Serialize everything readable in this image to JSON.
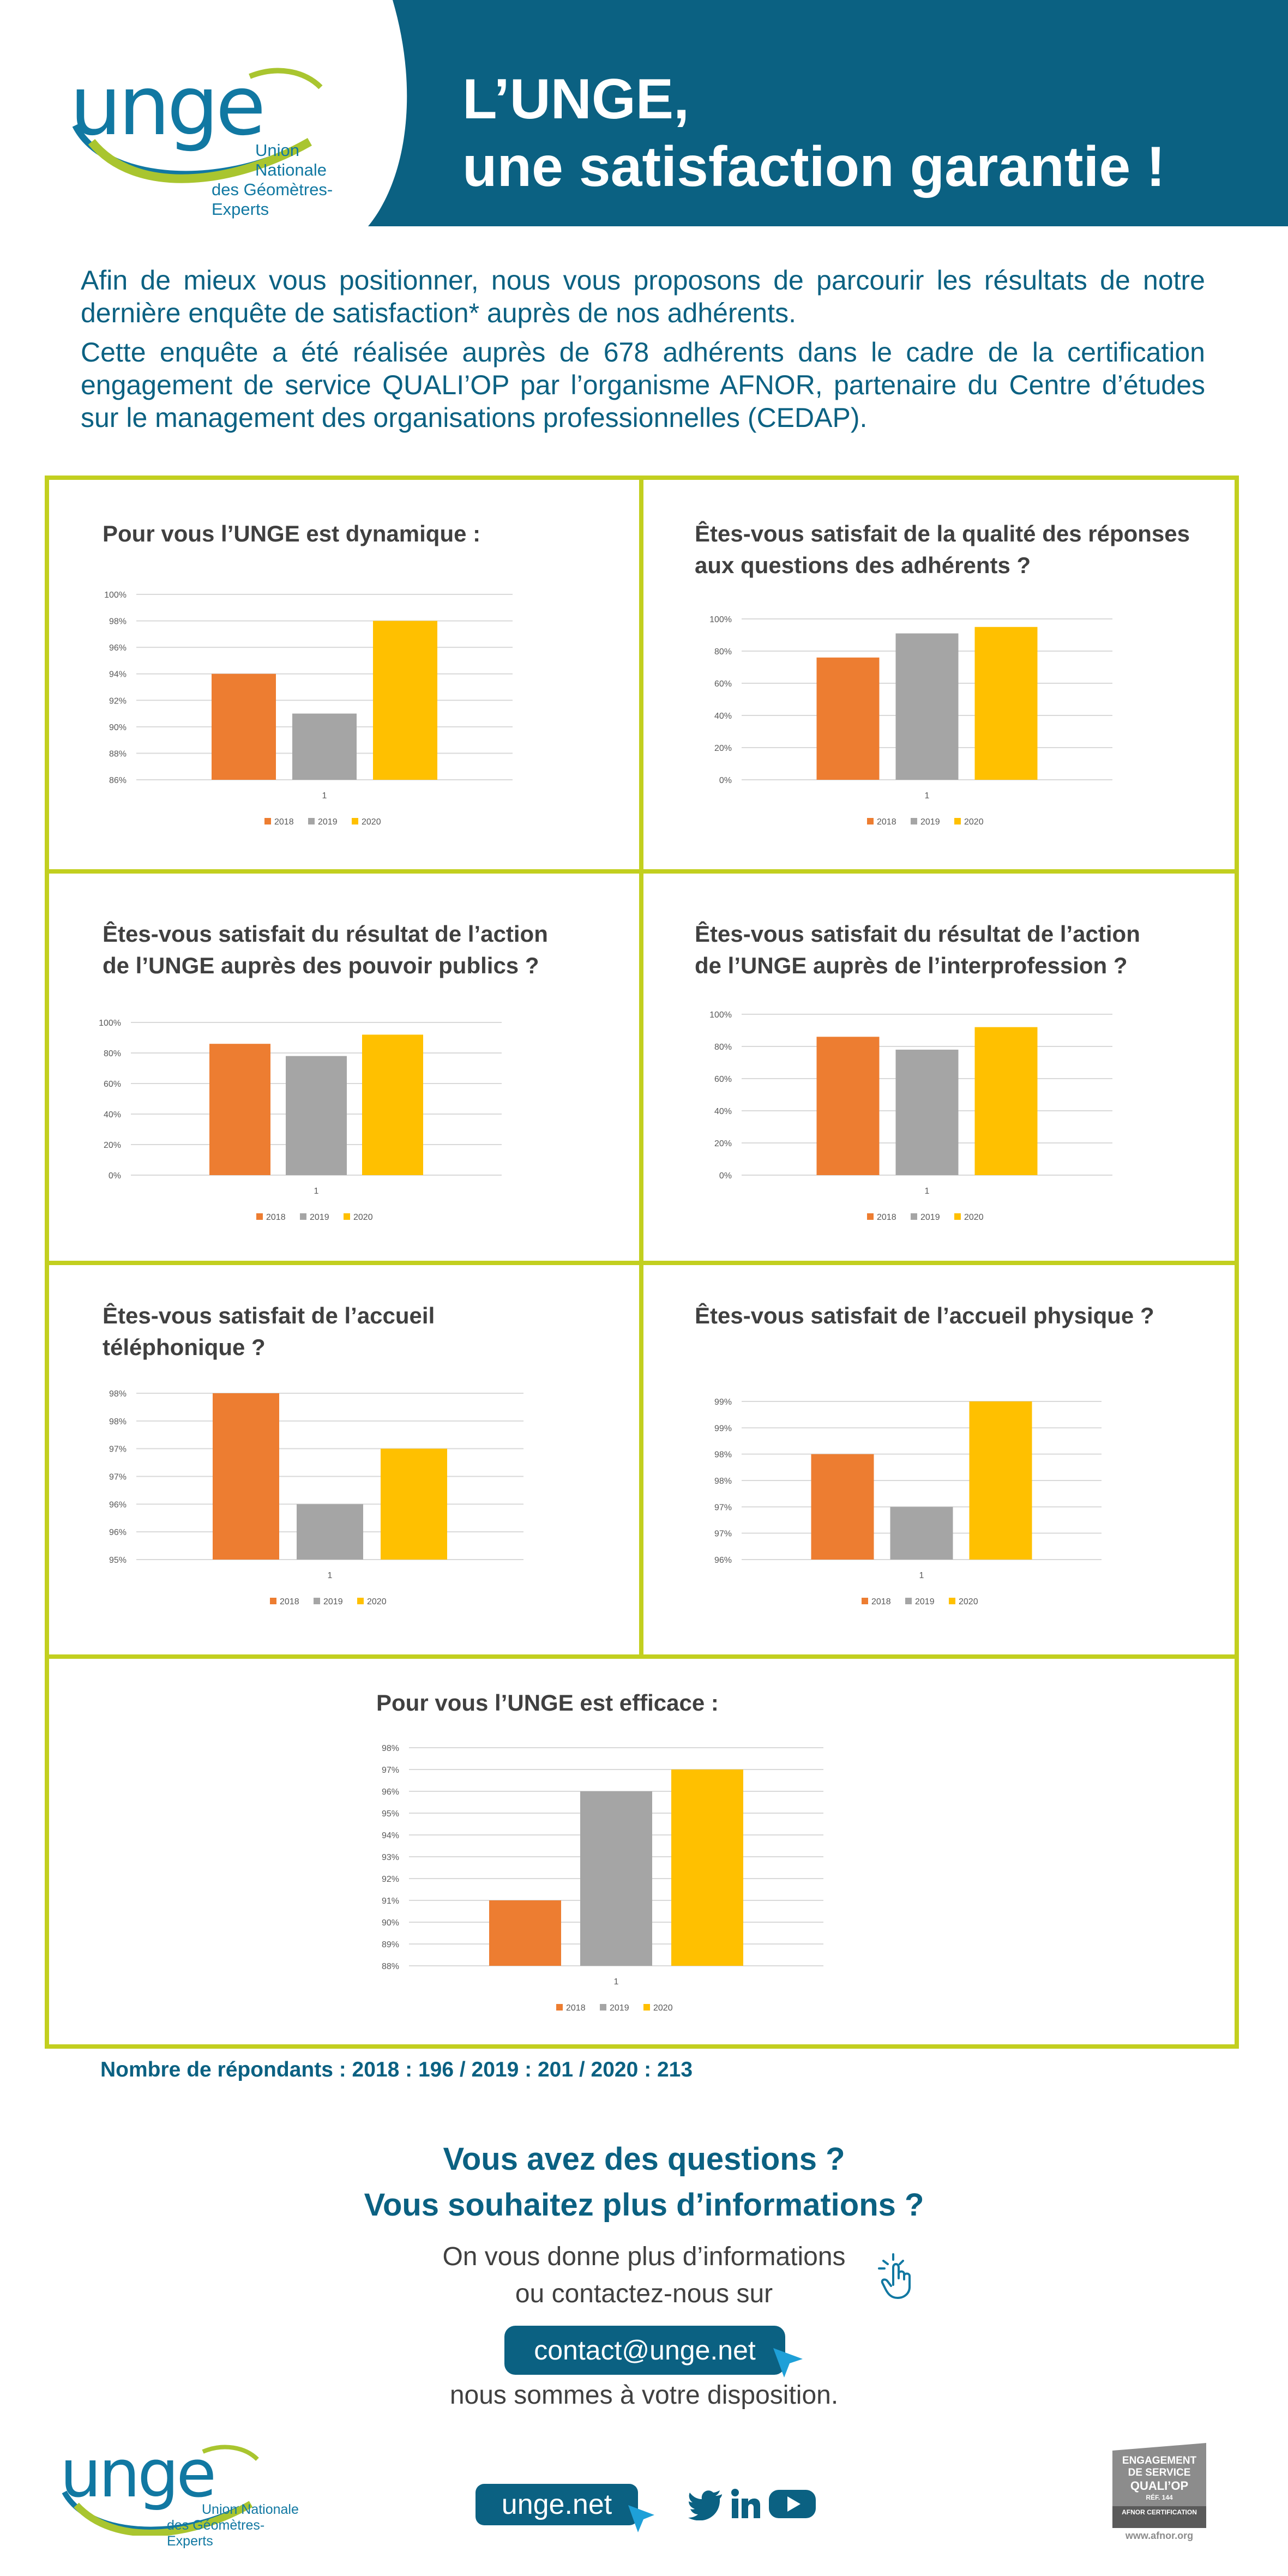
{
  "header": {
    "title_line1": "L’UNGE,",
    "title_line2": "une satisfaction garantie !",
    "band_color": "#0b6182"
  },
  "logo": {
    "brand": "unge",
    "subtitle_line1": "Union Nationale",
    "subtitle_line2": "des Géomètres-Experts",
    "accent_colors": [
      "#1178a2",
      "#a9c52f"
    ]
  },
  "intro": {
    "p1": "Afin de mieux vous positionner, nous vous proposons de parcourir les résultats de notre dernière enquête de satisfaction* auprès de nos adhérents.",
    "p2": "Cette enquête a été réalisée auprès de 678 adhérents dans le cadre de la certification engagement de service QUALI’OP par l’organisme AFNOR, partenaire du Centre d’études sur le management des organisations professionnelles (CEDAP)."
  },
  "survey": {
    "frame_color": "#c2cf1f",
    "charts": [
      {
        "title_line1": "Pour vous l’UNGE est dynamique :",
        "title_line2": ""
      },
      {
        "title_line1": "Êtes-vous satisfait de la qualité des réponses",
        "title_line2": "aux questions des adhérents ?"
      },
      {
        "title_line1": "Êtes-vous satisfait du résultat de l’action",
        "title_line2": "de l’UNGE auprès des pouvoir publics ?"
      },
      {
        "title_line1": "Êtes-vous satisfait du résultat de l’action",
        "title_line2": "de l’UNGE auprès de l’interprofession ?"
      },
      {
        "title_line1": "Êtes-vous satisfait de l’accueil",
        "title_line2": "téléphonique ?"
      },
      {
        "title_line1": "Êtes-vous satisfait de l’accueil physique ?",
        "title_line2": ""
      },
      {
        "title_line1": "Pour vous l’UNGE est efficace :",
        "title_line2": ""
      }
    ]
  },
  "chart_data": [
    {
      "type": "bar",
      "categories": [
        "1"
      ],
      "series": [
        {
          "name": "2018",
          "values": [
            94
          ]
        },
        {
          "name": "2019",
          "values": [
            91
          ]
        },
        {
          "name": "2020",
          "values": [
            98
          ]
        }
      ],
      "ticks": [
        "100%",
        "98%",
        "96%",
        "94%",
        "92%",
        "90%",
        "88%",
        "86%"
      ],
      "ylim": [
        86,
        100
      ],
      "legend": "bottom",
      "grid": true
    },
    {
      "type": "bar",
      "categories": [
        "1"
      ],
      "series": [
        {
          "name": "2018",
          "values": [
            76
          ]
        },
        {
          "name": "2019",
          "values": [
            91
          ]
        },
        {
          "name": "2020",
          "values": [
            95
          ]
        }
      ],
      "ticks": [
        "100%",
        "80%",
        "60%",
        "40%",
        "20%",
        "0%"
      ],
      "ylim": [
        0,
        100
      ],
      "legend": "bottom",
      "grid": true
    },
    {
      "type": "bar",
      "categories": [
        "1"
      ],
      "series": [
        {
          "name": "2018",
          "values": [
            86
          ]
        },
        {
          "name": "2019",
          "values": [
            78
          ]
        },
        {
          "name": "2020",
          "values": [
            92
          ]
        }
      ],
      "ticks": [
        "100%",
        "80%",
        "60%",
        "40%",
        "20%",
        "0%"
      ],
      "ylim": [
        0,
        100
      ],
      "legend": "bottom",
      "grid": true
    },
    {
      "type": "bar",
      "categories": [
        "1"
      ],
      "series": [
        {
          "name": "2018",
          "values": [
            86
          ]
        },
        {
          "name": "2019",
          "values": [
            78
          ]
        },
        {
          "name": "2020",
          "values": [
            92
          ]
        }
      ],
      "ticks": [
        "100%",
        "80%",
        "60%",
        "40%",
        "20%",
        "0%"
      ],
      "ylim": [
        0,
        100
      ],
      "legend": "bottom",
      "grid": true
    },
    {
      "type": "bar",
      "categories": [
        "1"
      ],
      "series": [
        {
          "name": "2018",
          "values": [
            98
          ]
        },
        {
          "name": "2019",
          "values": [
            96
          ]
        },
        {
          "name": "2020",
          "values": [
            97
          ]
        }
      ],
      "ticks": [
        "98%",
        "98%",
        "97%",
        "97%",
        "96%",
        "96%",
        "95%"
      ],
      "ylim": [
        95,
        98
      ],
      "legend": "bottom",
      "grid": true
    },
    {
      "type": "bar",
      "categories": [
        "1"
      ],
      "series": [
        {
          "name": "2018",
          "values": [
            98
          ]
        },
        {
          "name": "2019",
          "values": [
            97
          ]
        },
        {
          "name": "2020",
          "values": [
            99
          ]
        }
      ],
      "ticks": [
        "99%",
        "99%",
        "98%",
        "98%",
        "97%",
        "97%",
        "96%"
      ],
      "ylim": [
        96,
        99
      ],
      "legend": "bottom",
      "grid": true
    },
    {
      "type": "bar",
      "categories": [
        "1"
      ],
      "series": [
        {
          "name": "2018",
          "values": [
            91
          ]
        },
        {
          "name": "2019",
          "values": [
            96
          ]
        },
        {
          "name": "2020",
          "values": [
            97
          ]
        }
      ],
      "ticks": [
        "98%",
        "97%",
        "96%",
        "95%",
        "94%",
        "93%",
        "92%",
        "91%",
        "90%",
        "89%",
        "88%"
      ],
      "ylim": [
        88,
        98
      ],
      "legend": "bottom",
      "grid": true
    }
  ],
  "series_colors": [
    "#ed7d31",
    "#a5a5a5",
    "#ffc000"
  ],
  "respondents": "Nombre de répondants : 2018 : 196 / 2019 : 201 / 2020 : 213",
  "contact": {
    "q1": "Vous avez des questions ?",
    "q2": "Vous souhaitez plus d’informations ?",
    "info1": "On vous donne plus d’informations",
    "info2": "ou contactez-nous sur",
    "email": "contact@unge.net",
    "disposition": "nous sommes à votre disposition."
  },
  "footer": {
    "site": "unge.net",
    "social_icons": [
      "twitter-icon",
      "linkedin-icon",
      "youtube-icon"
    ],
    "afnor_line1": "ENGAGEMENT",
    "afnor_line2": "DE SERVICE",
    "afnor_line3": "QUALI’OP",
    "afnor_line4": "RÉF. 144",
    "afnor_line5": "AFNOR CERTIFICATION",
    "afnor_url": "www.afnor.org"
  }
}
